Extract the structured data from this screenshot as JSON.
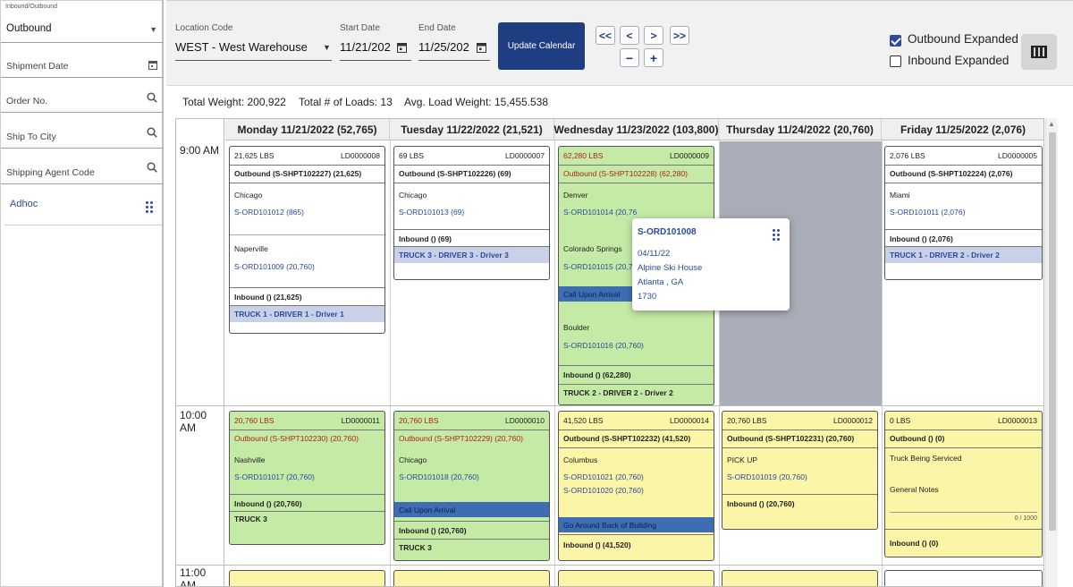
{
  "sidebar": {
    "direction_label": "Inbound/Outbound",
    "direction_value": "Outbound",
    "shipment_date": "Shipment Date",
    "order_no": "Order No.",
    "ship_to_city": "Ship To City",
    "shipping_agent_code": "Shipping Agent Code",
    "adhoc": "Adhoc"
  },
  "toolbar": {
    "location_label": "Location Code",
    "location_value": "WEST - West Warehouse",
    "start_label": "Start Date",
    "start_value": "11/21/202",
    "end_label": "End Date",
    "end_value": "11/25/202",
    "update_button": "Update Calendar",
    "nav_first": "<<",
    "nav_prev": "<",
    "nav_next": ">",
    "nav_last": ">>",
    "zoom_out": "−",
    "zoom_in": "+",
    "outbound_expanded": "Outbound Expanded",
    "inbound_expanded": "Inbound Expanded"
  },
  "totals": {
    "total_weight": "Total Weight: 200,922",
    "total_loads": "Total # of Loads: 13",
    "avg_load": "Avg. Load Weight: 15,455.538"
  },
  "calendar": {
    "days": [
      "Monday 11/21/2022 (52,765)",
      "Tuesday 11/22/2022 (21,521)",
      "Wednesday 11/23/2022 (103,800)",
      "Thursday 11/24/2022 (20,760)",
      "Friday 11/25/2022 (2,076)"
    ],
    "times": [
      "9:00 AM",
      "10:00 AM",
      "11:00 AM"
    ]
  },
  "cards": {
    "mon9": {
      "lbs": "21,625 LBS",
      "ld": "LD0000008",
      "outbound": "Outbound (S-SHPT102227) (21,625)",
      "city1": "Chicago",
      "order1": "S-ORD101012 (865)",
      "city2": "Naperville",
      "order2": "S-ORD101009 (20,760)",
      "inbound": "Inbound () (21,625)",
      "truck": "TRUCK 1 - DRIVER 1 - Driver 1"
    },
    "tue9": {
      "lbs": "69 LBS",
      "ld": "LD0000007",
      "outbound": "Outbound (S-SHPT102226) (69)",
      "city1": "Chicago",
      "order1": "S-ORD101013 (69)",
      "inbound": "Inbound () (69)",
      "truck": "TRUCK 3 - DRIVER 3 - Driver 3"
    },
    "wed9": {
      "lbs": "62,280 LBS",
      "ld": "LD0000009",
      "outbound": "Outbound (S-SHPT102228) (62,280)",
      "city1": "Denver",
      "order1": "S-ORD101014 (20,76",
      "city2": "Colorado Springs",
      "order2": "S-ORD101015 (20,76",
      "note": "Call Upon Arrival",
      "city3": "Boulder",
      "order3": "S-ORD101016 (20,760)",
      "inbound": "Inbound () (62,280)",
      "truck": "TRUCK 2 - DRIVER 2 - Driver 2"
    },
    "fri9": {
      "lbs": "2,076 LBS",
      "ld": "LD0000005",
      "outbound": "Outbound (S-SHPT102224) (2,076)",
      "city1": "Miami",
      "order1": "S-ORD101011 (2,076)",
      "inbound": "Inbound () (2,076)",
      "truck": "TRUCK 1 - DRIVER 2 - Driver 2"
    },
    "mon10": {
      "lbs": "20,760 LBS",
      "ld": "LD0000011",
      "outbound": "Outbound (S-SHPT102230) (20,760)",
      "city1": "Nashville",
      "order1": "S-ORD101017 (20,760)",
      "inbound": "Inbound () (20,760)",
      "truck": "TRUCK 3"
    },
    "tue10": {
      "lbs": "20,760 LBS",
      "ld": "LD0000010",
      "outbound": "Outbound (S-SHPT102229) (20,760)",
      "city1": "Chicago",
      "order1": "S-ORD101018 (20,760)",
      "note": "Call Upon Arrival",
      "inbound": "Inbound () (20,760)",
      "truck": "TRUCK 3"
    },
    "wed10": {
      "lbs": "41,520 LBS",
      "ld": "LD0000014",
      "outbound": "Outbound (S-SHPT102232) (41,520)",
      "city1": "Columbus",
      "order1": "S-ORD101021 (20,760)",
      "order2": "S-ORD101020 (20,760)",
      "note": "Go Around Back of Building",
      "inbound": "Inbound () (41,520)"
    },
    "thu10": {
      "lbs": "20,760 LBS",
      "ld": "LD0000012",
      "outbound": "Outbound (S-SHPT102231) (20,760)",
      "city1": "PICK UP",
      "order1": "S-ORD101019 (20,760)",
      "inbound": "Inbound () (20,760)"
    },
    "fri10": {
      "lbs": "0 LBS",
      "ld": "LD0000013",
      "outbound": "Outbound () (0)",
      "city1": "Truck Being Serviced",
      "notes_label": "General Notes",
      "counter": "0 / 1000",
      "inbound": "Inbound () (0)"
    }
  },
  "popup": {
    "order": "S-ORD101008",
    "date": "04/11/22",
    "name": "Alpine Ski House",
    "city": "Atlanta , GA",
    "time": "1730"
  }
}
